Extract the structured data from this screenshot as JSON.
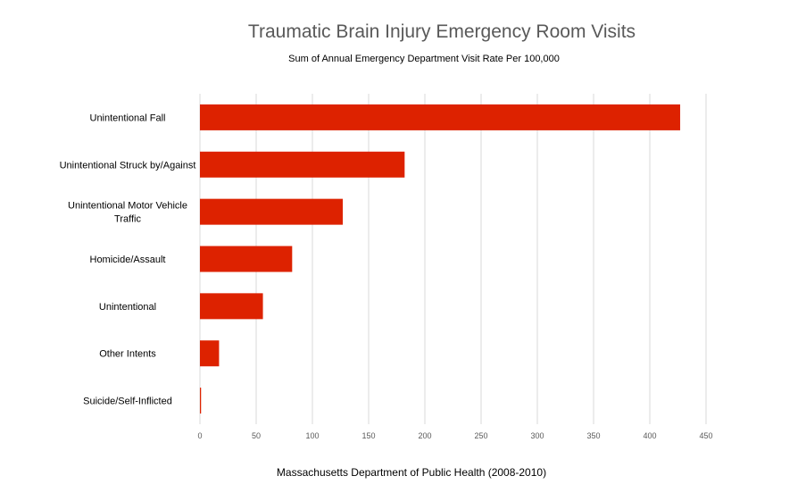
{
  "chart_data": {
    "type": "bar",
    "orientation": "horizontal",
    "title": "Traumatic Brain Injury Emergency Room Visits",
    "subtitle": "Sum of Annual Emergency Department Visit Rate Per 100,000",
    "xlabel": "Massachusetts Department of Public Health (2008-2010)",
    "ylabel": "",
    "categories": [
      [
        "Unintentional Fall"
      ],
      [
        "Unintentional Struck by/Against"
      ],
      [
        "Unintentional Motor Vehicle",
        "Traffic"
      ],
      [
        "Homicide/Assault"
      ],
      [
        "Unintentional"
      ],
      [
        "Other Intents"
      ],
      [
        "Suicide/Self-Inflicted"
      ]
    ],
    "values": [
      427,
      182,
      127,
      82,
      56,
      17,
      1
    ],
    "xlim": [
      0,
      450
    ],
    "xticks": [
      0,
      50,
      100,
      150,
      200,
      250,
      300,
      350,
      400,
      450
    ],
    "grid": true,
    "legend": "none",
    "bar_color": "#dd2200",
    "grid_color": "#d9d9d9"
  }
}
